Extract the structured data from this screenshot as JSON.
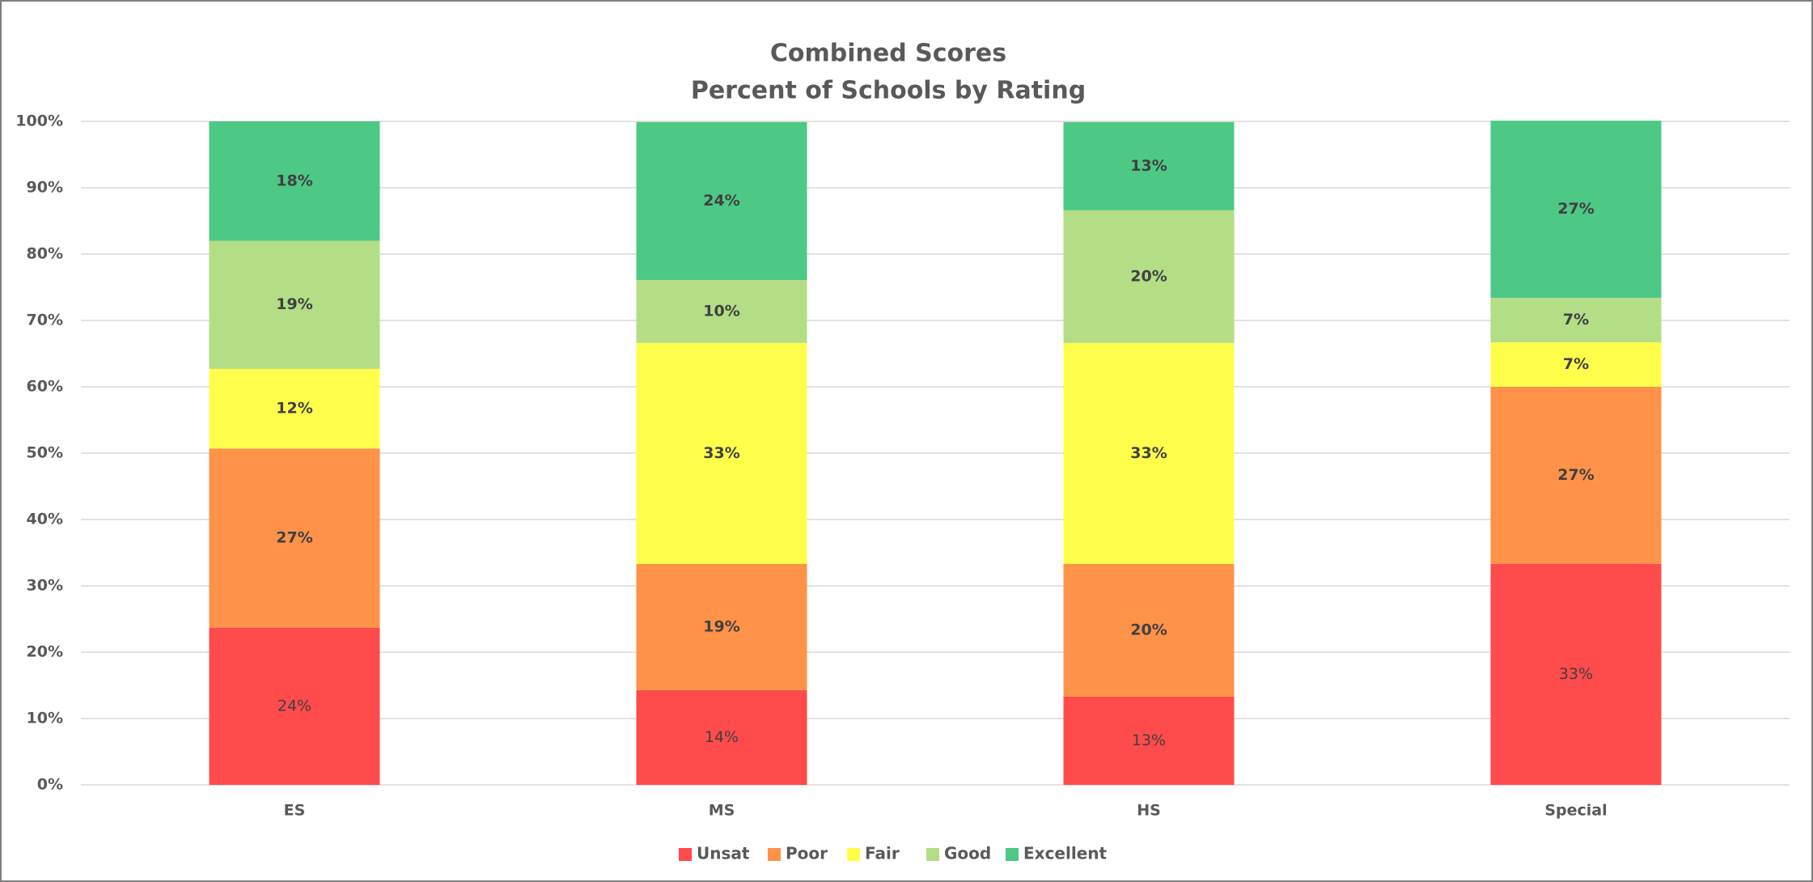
{
  "chart_data": {
    "type": "stacked_bar",
    "title": [
      "Combined Scores",
      "Percent of Schools by Rating"
    ],
    "categories": [
      "ES",
      "MS",
      "HS",
      "Special"
    ],
    "series": [
      {
        "name": "Unsat",
        "color": "#ff4b4b",
        "values": [
          23.7,
          14.3,
          13.3,
          33.3
        ],
        "value_labels": [
          "24%",
          "14%",
          "13%",
          "33%"
        ]
      },
      {
        "name": "Poor",
        "color": "#ff9249",
        "values": [
          27.0,
          19.0,
          20.0,
          26.7
        ],
        "value_labels": [
          "27%",
          "19%",
          "20%",
          "27%"
        ]
      },
      {
        "name": "Fair",
        "color": "#ffff4b",
        "values": [
          12.0,
          33.3,
          33.3,
          6.7
        ],
        "value_labels": [
          "12%",
          "33%",
          "33%",
          "7%"
        ]
      },
      {
        "name": "Good",
        "color": "#b3de86",
        "values": [
          19.3,
          9.5,
          20.0,
          6.7
        ],
        "value_labels": [
          "19%",
          "10%",
          "20%",
          "7%"
        ]
      },
      {
        "name": "Excellent",
        "color": "#4dc885",
        "values": [
          18.0,
          23.8,
          13.3,
          26.7
        ],
        "value_labels": [
          "18%",
          "24%",
          "13%",
          "27%"
        ]
      }
    ],
    "ylim": [
      0,
      100
    ],
    "yticks": [
      {
        "value": 0,
        "label": "0%"
      },
      {
        "value": 10,
        "label": "10%"
      },
      {
        "value": 20,
        "label": "20%"
      },
      {
        "value": 30,
        "label": "30%"
      },
      {
        "value": 40,
        "label": "40%"
      },
      {
        "value": 50,
        "label": "50%"
      },
      {
        "value": 60,
        "label": "60%"
      },
      {
        "value": 70,
        "label": "70%"
      },
      {
        "value": 80,
        "label": "80%"
      },
      {
        "value": 90,
        "label": "90%"
      },
      {
        "value": 100,
        "label": "100%"
      }
    ],
    "grid": true,
    "legend": "bottom"
  }
}
